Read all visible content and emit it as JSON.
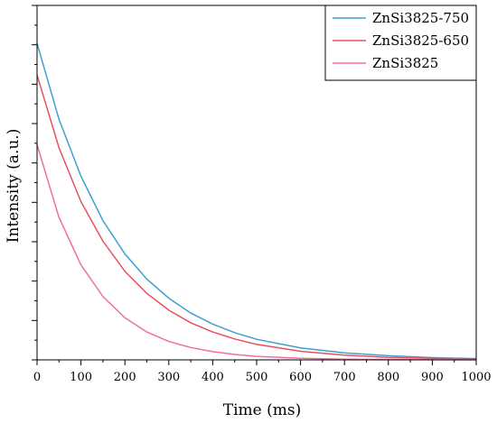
{
  "chart_data": {
    "type": "line",
    "title": "",
    "xlabel": "Time (ms)",
    "ylabel": "Intensity (a.u.)",
    "xlim": [
      0,
      1000
    ],
    "ylim": [
      0,
      1.12
    ],
    "x_ticks": [
      0,
      100,
      200,
      300,
      400,
      500,
      600,
      700,
      800,
      900,
      1000
    ],
    "x_tick_labels": [
      "0",
      "100",
      "200",
      "300",
      "400",
      "500",
      "600",
      "700",
      "800",
      "900",
      "1000"
    ],
    "y_tick_labels_shown": false,
    "grid": false,
    "legend_position": "top-right",
    "series": [
      {
        "name": "ZnSi3825-750",
        "color": "#3fa0d0",
        "x": [
          0,
          50,
          100,
          150,
          200,
          250,
          300,
          350,
          400,
          450,
          500,
          600,
          700,
          800,
          900,
          1000
        ],
        "y": [
          1.0,
          0.76,
          0.58,
          0.44,
          0.335,
          0.255,
          0.195,
          0.148,
          0.113,
          0.086,
          0.065,
          0.038,
          0.022,
          0.013,
          0.007,
          0.004
        ]
      },
      {
        "name": "ZnSi3825-650",
        "color": "#e8505f",
        "x": [
          0,
          50,
          100,
          150,
          200,
          250,
          300,
          350,
          400,
          450,
          500,
          600,
          700,
          800,
          900,
          1000
        ],
        "y": [
          0.9,
          0.67,
          0.5,
          0.375,
          0.28,
          0.21,
          0.157,
          0.117,
          0.088,
          0.066,
          0.049,
          0.027,
          0.015,
          0.008,
          0.005,
          0.003
        ]
      },
      {
        "name": "ZnSi3825",
        "color": "#f06fa0",
        "x": [
          0,
          50,
          100,
          150,
          200,
          250,
          300,
          350,
          400,
          450,
          500,
          600,
          700,
          800,
          900,
          1000
        ],
        "y": [
          0.68,
          0.45,
          0.3,
          0.2,
          0.133,
          0.088,
          0.058,
          0.039,
          0.026,
          0.017,
          0.011,
          0.005,
          0.002,
          0.001,
          0.0005,
          0.0002
        ]
      }
    ]
  }
}
